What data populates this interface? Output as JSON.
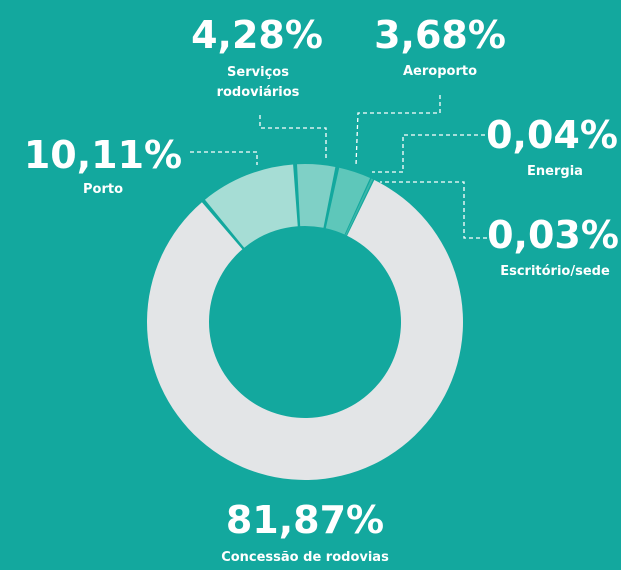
{
  "chart_data": {
    "type": "pie",
    "categories": [
      "Porto",
      "Serviços rodoviários",
      "Aeroporto",
      "Energia",
      "Escritório/sede",
      "Concessão de rodovias"
    ],
    "values": [
      10.11,
      4.28,
      3.68,
      0.04,
      0.03,
      81.87
    ],
    "value_labels": [
      "10,11%",
      "4,28%",
      "3,68%",
      "0,04%",
      "0,03%",
      "81,87%"
    ],
    "colors": [
      "#a6ddd5",
      "#7fd0c6",
      "#5ec7ba",
      "#46bdb0",
      "#3bb6a9",
      "#e3e5e7"
    ]
  }
}
